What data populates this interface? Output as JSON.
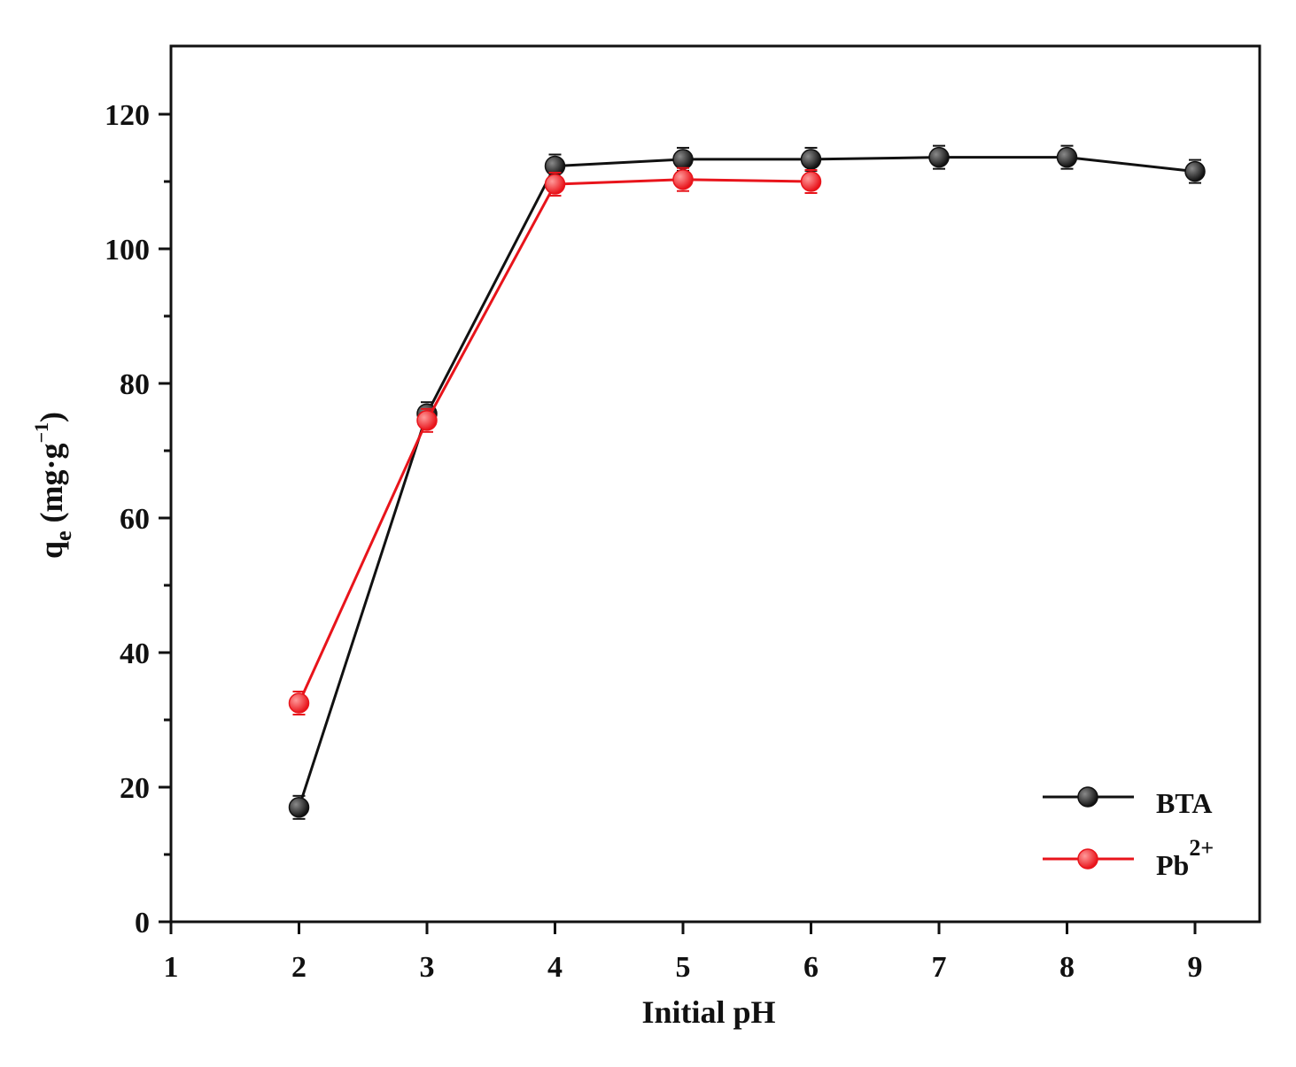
{
  "chart_data": {
    "type": "line",
    "xlabel": "Initial pH",
    "ylabel": {
      "main": "q",
      "sub": "e",
      "units_open": " (mg·g",
      "units_sup": "−1",
      "units_close": ")"
    },
    "xlim": [
      1,
      9.5
    ],
    "ylim": [
      0,
      130
    ],
    "x_ticks": [
      1,
      2,
      3,
      4,
      5,
      6,
      7,
      8,
      9
    ],
    "y_ticks": [
      0,
      20,
      40,
      60,
      80,
      100,
      120
    ],
    "y_minor_ticks": [
      10,
      30,
      50,
      70,
      90,
      110
    ],
    "grid": false,
    "legend_position": "bottom-right",
    "series": [
      {
        "name": "BTA",
        "legend": {
          "base": "BTA",
          "sup": ""
        },
        "color": "#111111",
        "x": [
          2,
          3,
          4,
          5,
          6,
          7,
          8,
          9
        ],
        "y": [
          17,
          75.5,
          112.3,
          113.3,
          113.3,
          113.6,
          113.6,
          111.5
        ]
      },
      {
        "name": "Pb2+",
        "legend": {
          "base": "Pb",
          "sup": "2+"
        },
        "color": "#e8141b",
        "x": [
          2,
          3,
          4,
          5,
          6
        ],
        "y": [
          32.5,
          74.5,
          109.6,
          110.3,
          110
        ]
      }
    ]
  }
}
